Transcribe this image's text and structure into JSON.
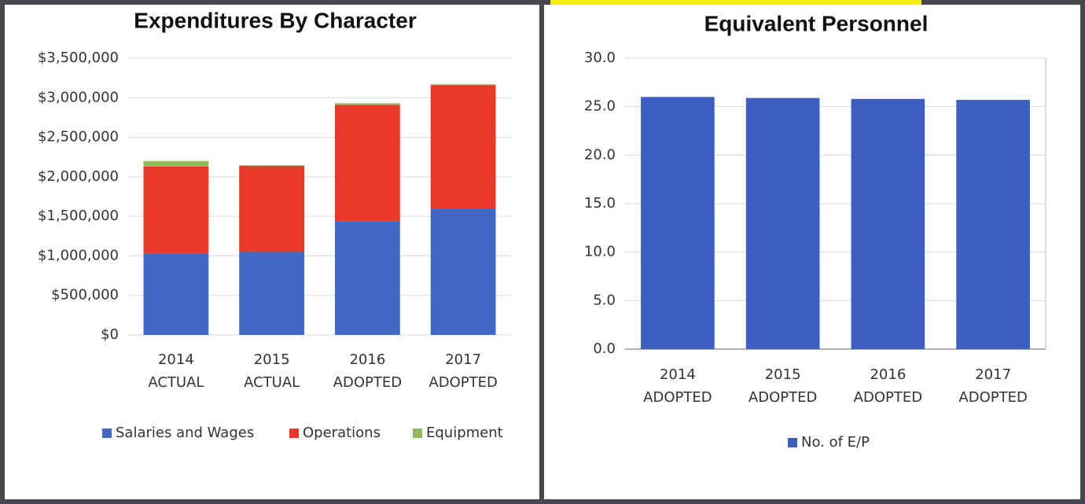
{
  "chart_data": [
    {
      "type": "stacked_bar",
      "title": "Expenditures By Character",
      "categories": [
        [
          "2014",
          "ACTUAL"
        ],
        [
          "2015",
          "ACTUAL"
        ],
        [
          "2016",
          "ADOPTED"
        ],
        [
          "2017",
          "ADOPTED"
        ]
      ],
      "series": [
        {
          "name": "Salaries and Wages",
          "color": "#4169c4",
          "values": [
            1030000,
            1050000,
            1440000,
            1600000
          ]
        },
        {
          "name": "Operations",
          "color": "#e8392b",
          "values": [
            1100000,
            1090000,
            1470000,
            1560000
          ]
        },
        {
          "name": "Equipment",
          "color": "#8fbc5a",
          "values": [
            70000,
            5000,
            20000,
            10000
          ]
        }
      ],
      "ylim": [
        0,
        3500000
      ],
      "yticks": [
        {
          "value": 0,
          "label": "$0"
        },
        {
          "value": 500000,
          "label": "$500,000"
        },
        {
          "value": 1000000,
          "label": "$1,000,000"
        },
        {
          "value": 1500000,
          "label": "$1,500,000"
        },
        {
          "value": 2000000,
          "label": "$2,000,000"
        },
        {
          "value": 2500000,
          "label": "$2,500,000"
        },
        {
          "value": 3000000,
          "label": "$3,000,000"
        },
        {
          "value": 3500000,
          "label": "$3,500,000"
        }
      ],
      "grid": true,
      "legend": "bottom"
    },
    {
      "type": "bar",
      "title": "Equivalent Personnel",
      "categories": [
        [
          "2014",
          "ADOPTED"
        ],
        [
          "2015",
          "ADOPTED"
        ],
        [
          "2016",
          "ADOPTED"
        ],
        [
          "2017",
          "ADOPTED"
        ]
      ],
      "series": [
        {
          "name": "No. of E/P",
          "color": "#3a5fbf",
          "values": [
            26,
            25.9,
            25.8,
            25.7
          ]
        }
      ],
      "ylim": [
        0,
        30
      ],
      "yticks": [
        {
          "value": 0,
          "label": "0.0"
        },
        {
          "value": 5,
          "label": "5.0"
        },
        {
          "value": 10,
          "label": "10.0"
        },
        {
          "value": 15,
          "label": "15.0"
        },
        {
          "value": 20,
          "label": "20.0"
        },
        {
          "value": 25,
          "label": "25.0"
        },
        {
          "value": 30,
          "label": "30.0"
        }
      ],
      "grid": true,
      "legend": "bottom"
    }
  ]
}
